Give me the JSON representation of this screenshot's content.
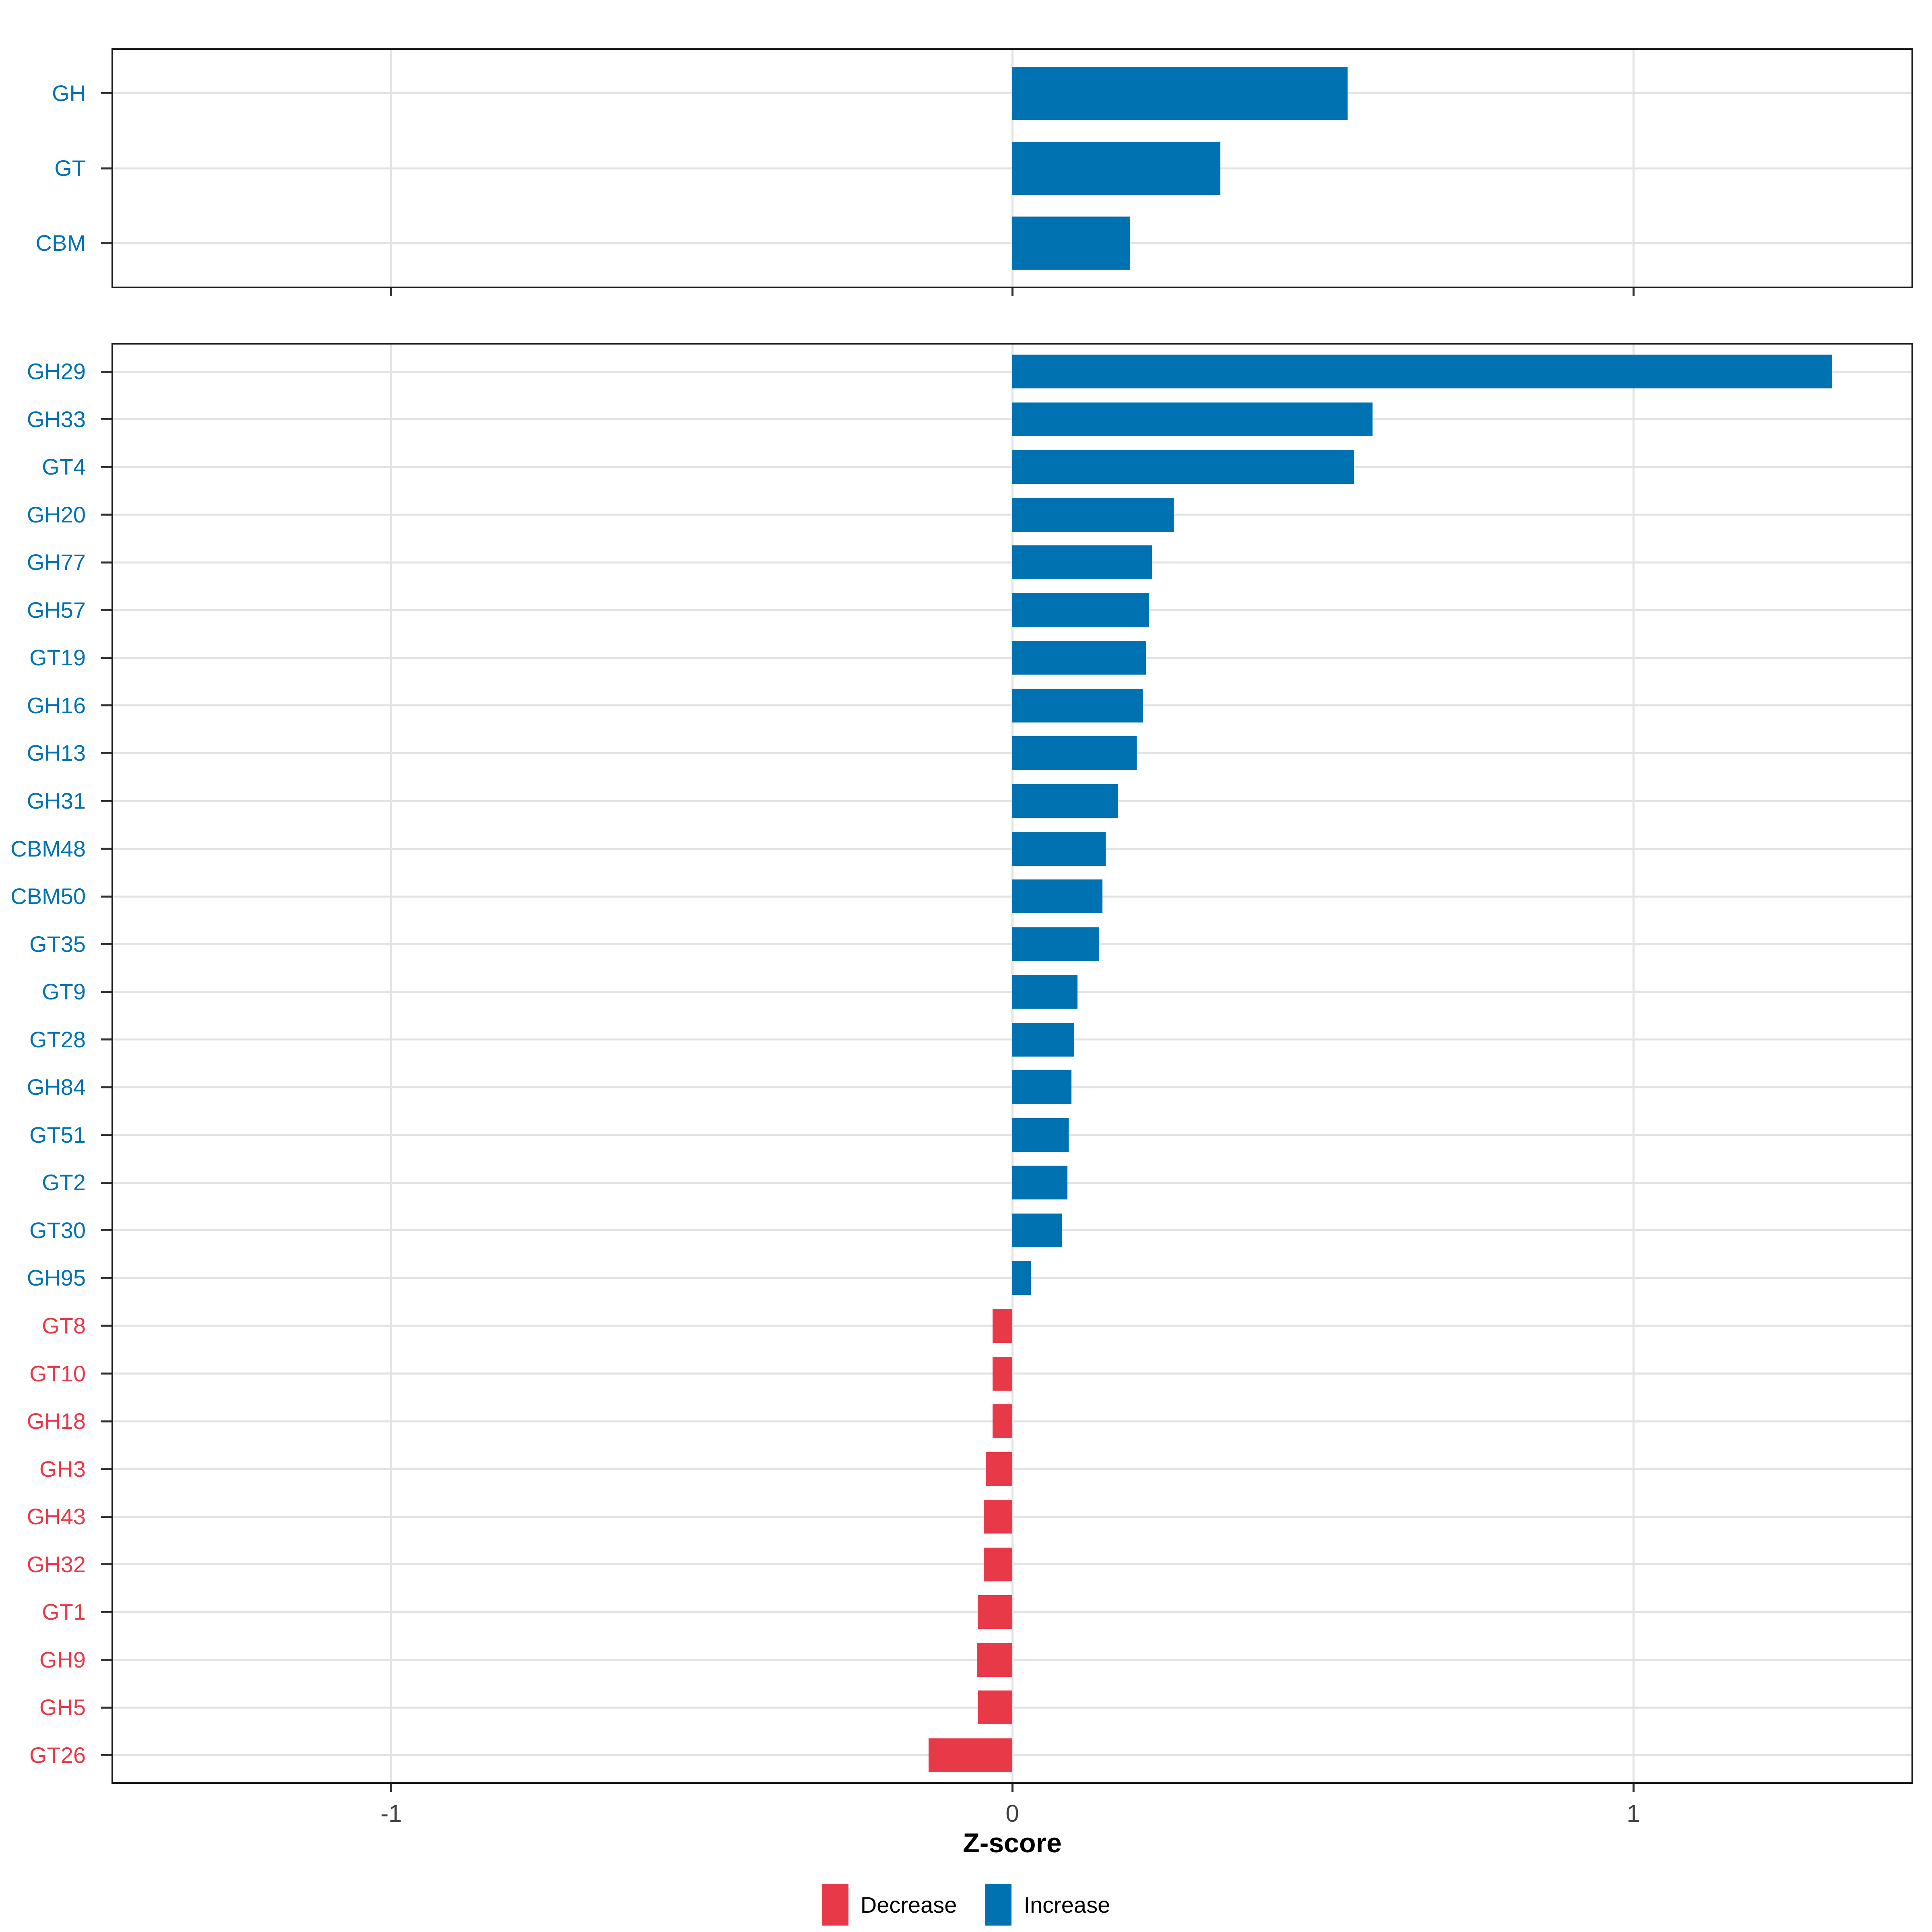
{
  "colors": {
    "increase": "#0072B2",
    "decrease": "#E73948",
    "grid": "#E3E3E3",
    "panel_border": "#1A1A1A",
    "tick_mark": "#333333",
    "tick_text": "#404040",
    "axis_title_text": "#000000",
    "background": "#FFFFFF"
  },
  "xaxis": {
    "label": "Z-score",
    "tick_labels": [
      "-1",
      "0",
      "1"
    ],
    "tick_values": [
      -1,
      0,
      1
    ],
    "range": [
      -1.45,
      1.45
    ],
    "grid": "on"
  },
  "legend": {
    "position": "bottom",
    "items": [
      {
        "label": "Decrease",
        "color": "#E73948"
      },
      {
        "label": "Increase",
        "color": "#0072B2"
      }
    ]
  },
  "chart_data": [
    {
      "type": "bar",
      "orientation": "horizontal",
      "panel": "top",
      "title": "",
      "xlabel": "Z-score",
      "ylabel": "",
      "xlim": [
        -1.45,
        1.45
      ],
      "categories": [
        "GH",
        "GT",
        "CBM"
      ],
      "values": [
        0.54,
        0.335,
        0.19
      ],
      "directions": [
        "Increase",
        "Increase",
        "Increase"
      ]
    },
    {
      "type": "bar",
      "orientation": "horizontal",
      "panel": "bottom",
      "title": "",
      "xlabel": "Z-score",
      "ylabel": "",
      "xlim": [
        -1.45,
        1.45
      ],
      "categories": [
        "GH29",
        "GH33",
        "GT4",
        "GH20",
        "GH77",
        "GH57",
        "GT19",
        "GH16",
        "GH13",
        "GH31",
        "CBM48",
        "CBM50",
        "GT35",
        "GT9",
        "GT28",
        "GH84",
        "GT51",
        "GT2",
        "GT30",
        "GH95",
        "GT8",
        "GT10",
        "GH18",
        "GH3",
        "GH43",
        "GH32",
        "GT1",
        "GH9",
        "GH5",
        "GT26"
      ],
      "values": [
        1.32,
        0.58,
        0.55,
        0.26,
        0.225,
        0.22,
        0.215,
        0.21,
        0.2,
        0.17,
        0.15,
        0.145,
        0.14,
        0.105,
        0.1,
        0.095,
        0.091,
        0.089,
        0.08,
        0.03,
        -0.032,
        -0.032,
        -0.032,
        -0.043,
        -0.046,
        -0.046,
        -0.056,
        -0.057,
        -0.055,
        -0.135
      ],
      "directions": [
        "Increase",
        "Increase",
        "Increase",
        "Increase",
        "Increase",
        "Increase",
        "Increase",
        "Increase",
        "Increase",
        "Increase",
        "Increase",
        "Increase",
        "Increase",
        "Increase",
        "Increase",
        "Increase",
        "Increase",
        "Increase",
        "Increase",
        "Increase",
        "Decrease",
        "Decrease",
        "Decrease",
        "Decrease",
        "Decrease",
        "Decrease",
        "Decrease",
        "Decrease",
        "Decrease",
        "Decrease"
      ]
    }
  ]
}
